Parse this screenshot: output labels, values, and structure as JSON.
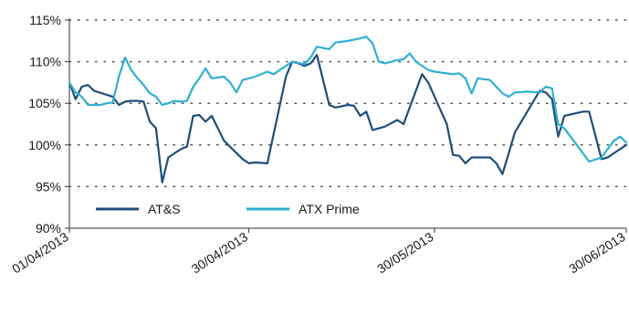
{
  "chart_data": {
    "type": "line",
    "title": "",
    "xlabel": "",
    "ylabel": "",
    "ylim": [
      90,
      115
    ],
    "y_ticks": [
      "90%",
      "95%",
      "100%",
      "105%",
      "110%",
      "115%"
    ],
    "y_tick_values": [
      90,
      95,
      100,
      105,
      110,
      115
    ],
    "x_tick_labels": [
      "01/04/2013",
      "30/04/2013",
      "30/05/2013",
      "30/06/2013"
    ],
    "x_tick_dates": [
      "2013-04-01",
      "2013-04-30",
      "2013-05-30",
      "2013-06-30"
    ],
    "grid": "horizontal dotted",
    "legend_position": "lower-left",
    "series": [
      {
        "name": "AT&S",
        "color": "#1f4e79",
        "points": [
          [
            "2013-04-01",
            107.5
          ],
          [
            "2013-04-02",
            105.5
          ],
          [
            "2013-04-03",
            107.0
          ],
          [
            "2013-04-04",
            107.2
          ],
          [
            "2013-04-05",
            106.5
          ],
          [
            "2013-04-08",
            105.8
          ],
          [
            "2013-04-09",
            104.8
          ],
          [
            "2013-04-10",
            105.2
          ],
          [
            "2013-04-11",
            105.3
          ],
          [
            "2013-04-12",
            105.3
          ],
          [
            "2013-04-13",
            105.2
          ],
          [
            "2013-04-14",
            102.8
          ],
          [
            "2013-04-15",
            102.0
          ],
          [
            "2013-04-16",
            95.5
          ],
          [
            "2013-04-17",
            98.5
          ],
          [
            "2013-04-18",
            99.0
          ],
          [
            "2013-04-19",
            99.5
          ],
          [
            "2013-04-20",
            99.8
          ],
          [
            "2013-04-21",
            103.5
          ],
          [
            "2013-04-22",
            103.6
          ],
          [
            "2013-04-23",
            102.8
          ],
          [
            "2013-04-24",
            103.5
          ],
          [
            "2013-04-25",
            102.0
          ],
          [
            "2013-04-26",
            100.5
          ],
          [
            "2013-04-29",
            98.3
          ],
          [
            "2013-04-30",
            97.8
          ],
          [
            "2013-05-01",
            97.9
          ],
          [
            "2013-05-03",
            97.8
          ],
          [
            "2013-05-06",
            108.2
          ],
          [
            "2013-05-07",
            110.0
          ],
          [
            "2013-05-08",
            109.8
          ],
          [
            "2013-05-09",
            109.5
          ],
          [
            "2013-05-10",
            109.8
          ],
          [
            "2013-05-11",
            110.8
          ],
          [
            "2013-05-13",
            104.8
          ],
          [
            "2013-05-14",
            104.5
          ],
          [
            "2013-05-16",
            104.8
          ],
          [
            "2013-05-17",
            104.7
          ],
          [
            "2013-05-18",
            103.5
          ],
          [
            "2013-05-19",
            104.0
          ],
          [
            "2013-05-20",
            101.8
          ],
          [
            "2013-05-22",
            102.2
          ],
          [
            "2013-05-24",
            103.0
          ],
          [
            "2013-05-25",
            102.5
          ],
          [
            "2013-05-28",
            108.5
          ],
          [
            "2013-05-29",
            107.5
          ],
          [
            "2013-06-01",
            102.5
          ],
          [
            "2013-06-02",
            98.8
          ],
          [
            "2013-06-03",
            98.7
          ],
          [
            "2013-06-04",
            97.8
          ],
          [
            "2013-06-05",
            98.5
          ],
          [
            "2013-06-08",
            98.5
          ],
          [
            "2013-06-09",
            97.8
          ],
          [
            "2013-06-10",
            96.5
          ],
          [
            "2013-06-12",
            101.5
          ],
          [
            "2013-06-14",
            104.0
          ],
          [
            "2013-06-16",
            106.5
          ],
          [
            "2013-06-17",
            106.3
          ],
          [
            "2013-06-18",
            105.5
          ],
          [
            "2013-06-19",
            101.0
          ],
          [
            "2013-06-20",
            103.5
          ],
          [
            "2013-06-23",
            104.0
          ],
          [
            "2013-06-24",
            104.0
          ],
          [
            "2013-06-26",
            98.3
          ],
          [
            "2013-06-27",
            98.5
          ],
          [
            "2013-06-28",
            99.0
          ],
          [
            "2013-06-30",
            100.0
          ]
        ]
      },
      {
        "name": "ATX Prime",
        "color": "#2fb0d2",
        "points": [
          [
            "2013-04-01",
            107.5
          ],
          [
            "2013-04-02",
            106.3
          ],
          [
            "2013-04-03",
            105.8
          ],
          [
            "2013-04-04",
            104.8
          ],
          [
            "2013-04-06",
            104.8
          ],
          [
            "2013-04-07",
            105.0
          ],
          [
            "2013-04-08",
            105.1
          ],
          [
            "2013-04-09",
            108.2
          ],
          [
            "2013-04-10",
            110.5
          ],
          [
            "2013-04-11",
            109.0
          ],
          [
            "2013-04-12",
            108.0
          ],
          [
            "2013-04-13",
            107.2
          ],
          [
            "2013-04-14",
            106.2
          ],
          [
            "2013-04-15",
            105.8
          ],
          [
            "2013-04-16",
            104.8
          ],
          [
            "2013-04-17",
            105.0
          ],
          [
            "2013-04-18",
            105.3
          ],
          [
            "2013-04-19",
            105.2
          ],
          [
            "2013-04-20",
            105.3
          ],
          [
            "2013-04-21",
            107.0
          ],
          [
            "2013-04-22",
            108.0
          ],
          [
            "2013-04-23",
            109.2
          ],
          [
            "2013-04-24",
            108.0
          ],
          [
            "2013-04-26",
            108.2
          ],
          [
            "2013-04-27",
            107.5
          ],
          [
            "2013-04-28",
            106.3
          ],
          [
            "2013-04-29",
            107.8
          ],
          [
            "2013-05-01",
            108.2
          ],
          [
            "2013-05-03",
            108.8
          ],
          [
            "2013-05-04",
            108.5
          ],
          [
            "2013-05-06",
            109.5
          ],
          [
            "2013-05-07",
            110.0
          ],
          [
            "2013-05-09",
            109.7
          ],
          [
            "2013-05-10",
            110.5
          ],
          [
            "2013-05-11",
            111.8
          ],
          [
            "2013-05-13",
            111.5
          ],
          [
            "2013-05-14",
            112.3
          ],
          [
            "2013-05-16",
            112.5
          ],
          [
            "2013-05-18",
            112.8
          ],
          [
            "2013-05-19",
            113.0
          ],
          [
            "2013-05-20",
            112.2
          ],
          [
            "2013-05-21",
            110.0
          ],
          [
            "2013-05-22",
            109.8
          ],
          [
            "2013-05-24",
            110.2
          ],
          [
            "2013-05-25",
            110.3
          ],
          [
            "2013-05-26",
            111.0
          ],
          [
            "2013-05-27",
            110.0
          ],
          [
            "2013-05-29",
            109.0
          ],
          [
            "2013-05-30",
            108.8
          ],
          [
            "2013-06-02",
            108.5
          ],
          [
            "2013-06-03",
            108.6
          ],
          [
            "2013-06-04",
            108.0
          ],
          [
            "2013-06-05",
            106.2
          ],
          [
            "2013-06-06",
            108.0
          ],
          [
            "2013-06-08",
            107.8
          ],
          [
            "2013-06-10",
            106.2
          ],
          [
            "2013-06-11",
            105.8
          ],
          [
            "2013-06-12",
            106.3
          ],
          [
            "2013-06-14",
            106.4
          ],
          [
            "2013-06-16",
            106.3
          ],
          [
            "2013-06-17",
            107.0
          ],
          [
            "2013-06-18",
            106.8
          ],
          [
            "2013-06-19",
            102.5
          ],
          [
            "2013-06-20",
            102.0
          ],
          [
            "2013-06-22",
            100.0
          ],
          [
            "2013-06-24",
            98.0
          ],
          [
            "2013-06-26",
            98.5
          ],
          [
            "2013-06-28",
            100.5
          ],
          [
            "2013-06-29",
            101.0
          ],
          [
            "2013-06-30",
            100.3
          ]
        ]
      }
    ]
  }
}
